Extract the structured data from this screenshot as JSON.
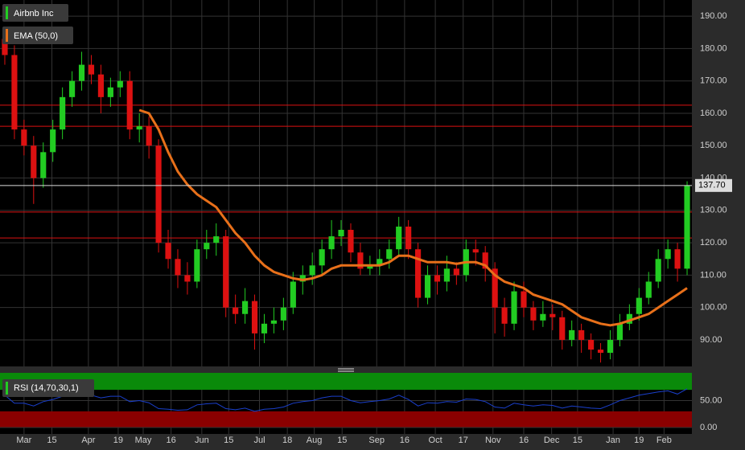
{
  "chart_data": {
    "type": "candlestick",
    "title": "Airbnb Inc",
    "up_color": "#22cc22",
    "down_color": "#dd1111",
    "open": [
      183,
      178,
      155,
      150,
      140,
      148,
      155,
      165,
      170,
      175,
      172,
      165,
      168,
      170,
      155,
      156,
      150,
      120,
      115,
      110,
      108,
      118,
      120,
      122,
      100,
      98,
      102,
      92,
      95,
      96,
      100,
      108,
      110,
      113,
      118,
      122,
      124,
      117,
      112,
      113,
      115,
      118,
      125,
      118,
      103,
      110,
      108,
      112,
      110,
      118,
      117,
      112,
      100,
      95,
      105,
      100,
      96,
      98,
      97,
      90,
      93,
      90,
      87,
      86,
      90,
      95,
      98,
      103,
      108,
      115,
      118,
      112
    ],
    "high": [
      186,
      181,
      158,
      153,
      151,
      158,
      168,
      173,
      179,
      178,
      175,
      171,
      173,
      173,
      160,
      159,
      152,
      124,
      118,
      114,
      121,
      124,
      126,
      124,
      104,
      106,
      104,
      98,
      100,
      103,
      111,
      113,
      117,
      121,
      127,
      127,
      126,
      120,
      116,
      118,
      121,
      128,
      127,
      120,
      113,
      113,
      116,
      114,
      121,
      121,
      119,
      114,
      103,
      108,
      108,
      102,
      102,
      101,
      99,
      96,
      95,
      92,
      89,
      93,
      98,
      101,
      106,
      111,
      118,
      121,
      120,
      139
    ],
    "low": [
      175,
      152,
      147,
      132,
      137,
      145,
      152,
      162,
      167,
      169,
      160,
      162,
      165,
      152,
      151,
      146,
      117,
      112,
      106,
      104,
      106,
      115,
      116,
      97,
      95,
      95,
      87,
      89,
      92,
      93,
      98,
      104,
      107,
      110,
      115,
      119,
      114,
      110,
      110,
      110,
      112,
      116,
      115,
      100,
      101,
      104,
      105,
      107,
      108,
      113,
      108,
      92,
      91,
      93,
      97,
      93,
      94,
      93,
      87,
      88,
      86,
      84,
      83,
      84,
      88,
      93,
      96,
      101,
      106,
      112,
      108,
      110
    ],
    "close": [
      178,
      155,
      150,
      140,
      148,
      155,
      165,
      170,
      175,
      172,
      165,
      168,
      170,
      155,
      156,
      150,
      120,
      115,
      110,
      108,
      118,
      120,
      122,
      100,
      98,
      102,
      92,
      95,
      96,
      100,
      108,
      110,
      113,
      118,
      122,
      124,
      117,
      112,
      113,
      115,
      118,
      125,
      118,
      103,
      110,
      108,
      112,
      110,
      118,
      117,
      112,
      100,
      95,
      105,
      100,
      96,
      98,
      97,
      90,
      93,
      90,
      87,
      86,
      90,
      95,
      98,
      103,
      108,
      115,
      118,
      112,
      137.7
    ],
    "ema": {
      "name": "EMA (50,0)",
      "color": "#e8701a",
      "values": [
        null,
        null,
        null,
        null,
        null,
        null,
        null,
        null,
        null,
        null,
        null,
        null,
        null,
        null,
        161,
        160,
        155,
        148,
        142,
        138,
        135,
        133,
        131,
        127,
        123,
        120,
        116,
        113,
        111,
        110,
        109,
        108.5,
        109,
        110,
        112,
        113,
        113,
        113,
        113,
        113,
        114,
        116,
        116,
        115,
        114,
        114,
        114,
        113.5,
        114,
        114,
        113,
        110,
        108,
        107,
        106,
        104,
        103,
        102,
        101,
        99,
        97,
        96,
        95,
        94.5,
        95,
        96,
        97,
        98,
        100,
        102,
        104,
        106
      ]
    },
    "levels": {
      "color": "#dd1111",
      "values": [
        162.5,
        156,
        129.5,
        121.5
      ]
    },
    "last_price": {
      "value": 137.7,
      "label": "137.70"
    },
    "xlim": [
      -0.5,
      71.5
    ],
    "ylim": [
      81.8,
      195
    ],
    "yticks": [
      {
        "value": 90,
        "label": "90.00"
      },
      {
        "value": 100,
        "label": "100.00"
      },
      {
        "value": 110,
        "label": "110.00"
      },
      {
        "value": 120,
        "label": "120.00"
      },
      {
        "value": 130,
        "label": "130.00"
      },
      {
        "value": 140,
        "label": "140.00"
      },
      {
        "value": 150,
        "label": "150.00"
      },
      {
        "value": 160,
        "label": "160.00"
      },
      {
        "value": 170,
        "label": "170.00"
      },
      {
        "value": 180,
        "label": "180.00"
      },
      {
        "value": 190,
        "label": "190.00"
      }
    ],
    "xticks": [
      {
        "value": 2.0,
        "label": "Mar"
      },
      {
        "value": 4.9,
        "label": "15"
      },
      {
        "value": 8.7,
        "label": "Apr"
      },
      {
        "value": 11.8,
        "label": "19"
      },
      {
        "value": 14.4,
        "label": "May"
      },
      {
        "value": 17.3,
        "label": "16"
      },
      {
        "value": 20.5,
        "label": "Jun"
      },
      {
        "value": 23.3,
        "label": "15"
      },
      {
        "value": 26.5,
        "label": "Jul"
      },
      {
        "value": 29.4,
        "label": "18"
      },
      {
        "value": 32.2,
        "label": "Aug"
      },
      {
        "value": 35.1,
        "label": "15"
      },
      {
        "value": 38.7,
        "label": "Sep"
      },
      {
        "value": 41.6,
        "label": "16"
      },
      {
        "value": 44.8,
        "label": "Oct"
      },
      {
        "value": 47.7,
        "label": "17"
      },
      {
        "value": 50.8,
        "label": "Nov"
      },
      {
        "value": 54.0,
        "label": "16"
      },
      {
        "value": 56.9,
        "label": "Dec"
      },
      {
        "value": 59.6,
        "label": "15"
      },
      {
        "value": 63.3,
        "label": "Jan"
      },
      {
        "value": 66.0,
        "label": "19"
      },
      {
        "value": 68.6,
        "label": "Feb"
      }
    ],
    "grid": true,
    "rsi": {
      "name": "RSI (14,70,30,1)",
      "color": "#1a3fcc",
      "values": [
        60,
        45,
        45,
        40,
        48,
        52,
        58,
        62,
        63,
        60,
        55,
        58,
        58,
        48,
        50,
        46,
        35,
        34,
        32,
        33,
        42,
        44,
        45,
        35,
        33,
        36,
        30,
        34,
        35,
        38,
        45,
        48,
        50,
        55,
        58,
        58,
        50,
        46,
        48,
        50,
        53,
        60,
        52,
        40,
        46,
        45,
        48,
        47,
        53,
        52,
        48,
        38,
        36,
        45,
        42,
        40,
        42,
        41,
        36,
        40,
        38,
        36,
        35,
        42,
        50,
        55,
        60,
        63,
        66,
        68,
        62,
        72
      ],
      "ylim": [
        -12,
        101.5
      ],
      "yticks": [
        {
          "value": 0,
          "label": "0.00"
        },
        {
          "value": 50,
          "label": "50.00"
        }
      ],
      "overbought": 70,
      "oversold": 30,
      "overbought_color": "#0a8a0a",
      "oversold_color": "#8a0000"
    }
  }
}
